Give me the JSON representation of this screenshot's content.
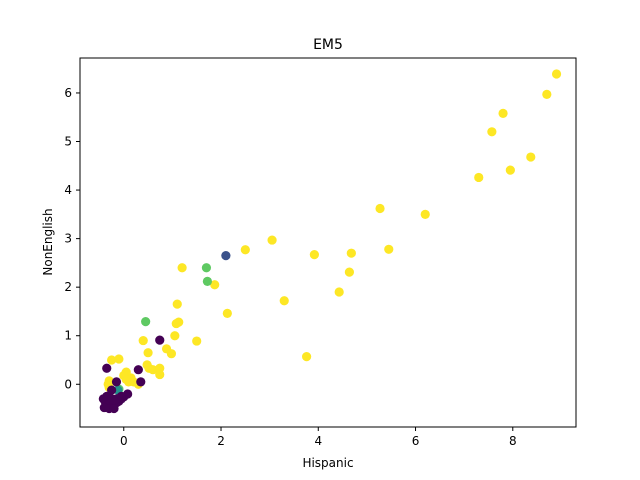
{
  "chart_data": {
    "type": "scatter",
    "title": "EM5",
    "xlabel": "Hispanic",
    "ylabel": "NonEnglish",
    "xlim": [
      -0.9,
      9.3
    ],
    "ylim": [
      -0.88,
      6.72
    ],
    "xticks": [
      0,
      2,
      4,
      6,
      8
    ],
    "yticks": [
      0,
      1,
      2,
      3,
      4,
      5,
      6
    ],
    "grid": false,
    "legend": "none",
    "colors": {
      "cluster_0": "#440154",
      "cluster_1": "#3b528b",
      "cluster_2": "#21918c",
      "cluster_3": "#5ec962",
      "cluster_4": "#fde725"
    },
    "series": [
      {
        "color_key": "cluster_4",
        "points": [
          [
            8.9,
            6.39
          ],
          [
            8.7,
            5.97
          ],
          [
            7.8,
            5.58
          ],
          [
            7.57,
            5.2
          ],
          [
            8.37,
            4.68
          ],
          [
            7.95,
            4.41
          ],
          [
            7.3,
            4.26
          ],
          [
            5.27,
            3.62
          ],
          [
            6.2,
            3.5
          ],
          [
            3.05,
            2.97
          ],
          [
            2.5,
            2.77
          ],
          [
            3.92,
            2.67
          ],
          [
            4.68,
            2.7
          ],
          [
            5.45,
            2.78
          ],
          [
            4.64,
            2.31
          ],
          [
            4.43,
            1.9
          ],
          [
            3.3,
            1.72
          ],
          [
            3.76,
            0.57
          ],
          [
            1.2,
            2.4
          ],
          [
            1.87,
            2.05
          ],
          [
            2.13,
            1.46
          ],
          [
            1.1,
            1.65
          ],
          [
            1.13,
            1.28
          ],
          [
            1.08,
            1.25
          ],
          [
            1.05,
            1.0
          ],
          [
            1.5,
            0.89
          ],
          [
            0.4,
            0.9
          ],
          [
            0.88,
            0.73
          ],
          [
            0.98,
            0.63
          ],
          [
            0.5,
            0.65
          ],
          [
            -0.25,
            0.5
          ],
          [
            -0.1,
            0.52
          ],
          [
            0.05,
            0.25
          ],
          [
            0.0,
            0.18
          ],
          [
            0.15,
            0.13
          ],
          [
            0.2,
            0.05
          ],
          [
            0.3,
            0.0
          ],
          [
            0.48,
            0.4
          ],
          [
            0.52,
            0.33
          ],
          [
            0.6,
            0.3
          ],
          [
            0.74,
            0.33
          ],
          [
            0.74,
            0.2
          ],
          [
            -0.3,
            0.07
          ],
          [
            -0.32,
            0.0
          ],
          [
            -0.3,
            -0.07
          ],
          [
            0.1,
            0.05
          ],
          [
            0.05,
            0.1
          ]
        ]
      },
      {
        "color_key": "cluster_3",
        "points": [
          [
            1.7,
            2.4
          ],
          [
            1.72,
            2.12
          ],
          [
            0.45,
            1.29
          ],
          [
            -0.1,
            -0.1
          ]
        ]
      },
      {
        "color_key": "cluster_2",
        "points": [
          [
            -0.12,
            -0.12
          ]
        ]
      },
      {
        "color_key": "cluster_1",
        "points": [
          [
            2.1,
            2.65
          ]
        ]
      },
      {
        "color_key": "cluster_0",
        "points": [
          [
            0.74,
            0.91
          ],
          [
            -0.35,
            0.33
          ],
          [
            0.3,
            0.3
          ],
          [
            0.35,
            0.05
          ],
          [
            -0.15,
            0.05
          ],
          [
            -0.25,
            -0.12
          ],
          [
            -0.42,
            -0.3
          ],
          [
            -0.38,
            -0.36
          ],
          [
            -0.3,
            -0.42
          ],
          [
            -0.22,
            -0.45
          ],
          [
            -0.15,
            -0.38
          ],
          [
            -0.05,
            -0.3
          ],
          [
            0.0,
            -0.26
          ],
          [
            0.08,
            -0.2
          ],
          [
            -0.4,
            -0.48
          ],
          [
            -0.3,
            -0.5
          ],
          [
            -0.2,
            -0.5
          ],
          [
            -0.35,
            -0.25
          ],
          [
            -0.25,
            -0.3
          ],
          [
            -0.1,
            -0.35
          ],
          [
            -0.15,
            -0.3
          ],
          [
            -0.05,
            -0.25
          ]
        ]
      }
    ]
  }
}
